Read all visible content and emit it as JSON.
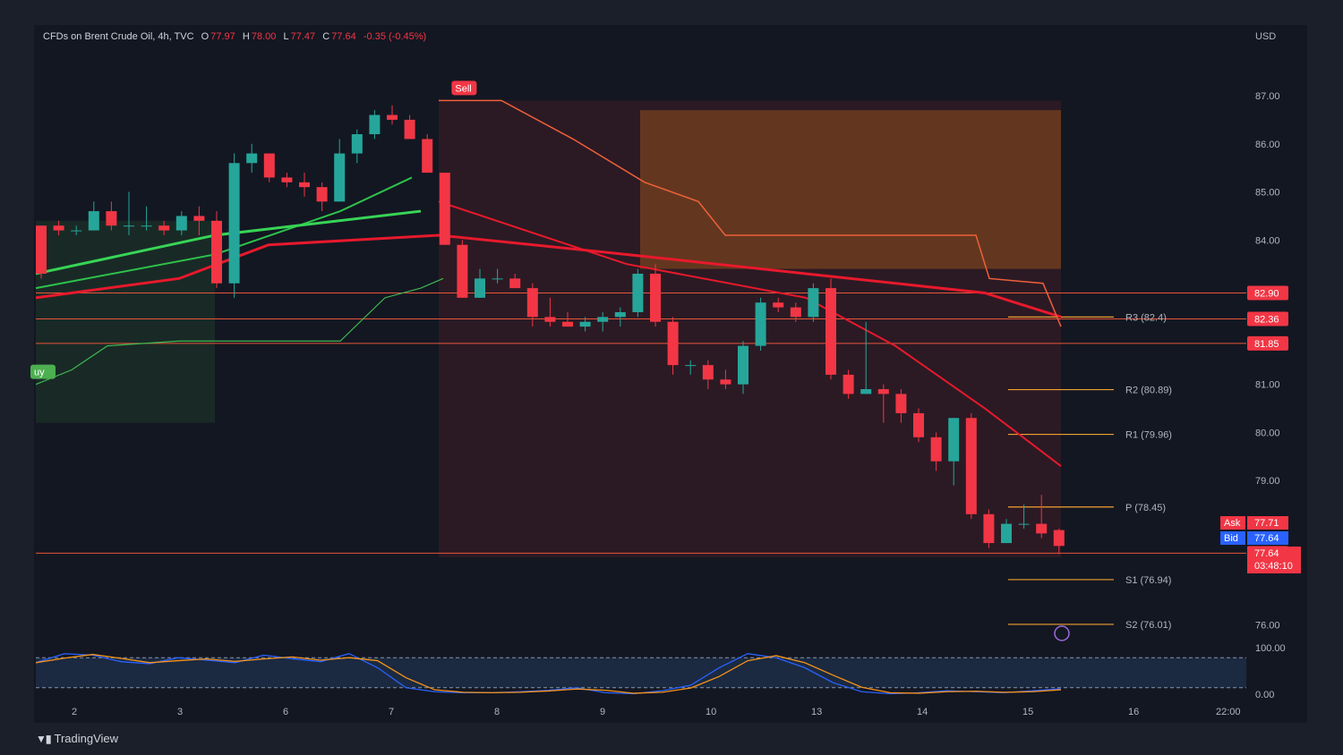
{
  "legend": {
    "title": "CFDs on Brent Crude Oil, 4h, TVC",
    "o_label": "O",
    "o": "77.97",
    "h_label": "H",
    "h": "78.00",
    "l_label": "L",
    "l": "77.47",
    "c_label": "C",
    "c": "77.64",
    "change": "-0.35 (-0.45%)"
  },
  "currency": "USD",
  "brand": "TradingView",
  "colors": {
    "up": "#26a69a",
    "down": "#f23645",
    "pivot": "#f0a030",
    "hline": "#e8553b",
    "signal_buy": "#4caf50",
    "signal_sell": "#f23645"
  },
  "chart_data": {
    "type": "candlestick",
    "ylim": [
      75.6,
      87.8
    ],
    "y_ticks": [
      "87.00",
      "86.00",
      "85.00",
      "84.00",
      "81.00",
      "80.00",
      "79.00",
      "76.00"
    ],
    "x_ticks": [
      "2",
      "3",
      "6",
      "7",
      "8",
      "9",
      "10",
      "13",
      "14",
      "15",
      "16",
      "22:00"
    ],
    "candles": [
      [
        84.3,
        84.3,
        83.2,
        83.3
      ],
      [
        84.3,
        84.4,
        84.1,
        84.2
      ],
      [
        84.2,
        84.3,
        84.1,
        84.2
      ],
      [
        84.2,
        84.8,
        84.2,
        84.6
      ],
      [
        84.6,
        84.8,
        84.2,
        84.3
      ],
      [
        84.3,
        85.0,
        84.1,
        84.3
      ],
      [
        84.3,
        84.7,
        84.2,
        84.3
      ],
      [
        84.3,
        84.4,
        84.1,
        84.2
      ],
      [
        84.2,
        84.6,
        84.1,
        84.5
      ],
      [
        84.5,
        84.7,
        84.1,
        84.4
      ],
      [
        84.4,
        84.6,
        83.0,
        83.1
      ],
      [
        83.1,
        85.8,
        82.8,
        85.6
      ],
      [
        85.6,
        86.0,
        85.4,
        85.8
      ],
      [
        85.8,
        85.8,
        85.2,
        85.3
      ],
      [
        85.3,
        85.4,
        85.1,
        85.2
      ],
      [
        85.2,
        85.4,
        84.9,
        85.1
      ],
      [
        85.1,
        85.2,
        84.6,
        84.8
      ],
      [
        84.8,
        86.1,
        84.8,
        85.8
      ],
      [
        85.8,
        86.3,
        85.6,
        86.2
      ],
      [
        86.2,
        86.7,
        86.1,
        86.6
      ],
      [
        86.6,
        86.8,
        86.4,
        86.5
      ],
      [
        86.5,
        86.6,
        86.1,
        86.1
      ],
      [
        86.1,
        86.2,
        85.4,
        85.4
      ],
      [
        85.4,
        85.4,
        83.9,
        83.9
      ],
      [
        83.9,
        84.0,
        82.8,
        82.8
      ],
      [
        82.8,
        83.4,
        82.8,
        83.2
      ],
      [
        83.2,
        83.4,
        83.1,
        83.2
      ],
      [
        83.2,
        83.3,
        83.0,
        83.0
      ],
      [
        83.0,
        83.1,
        82.2,
        82.4
      ],
      [
        82.4,
        82.8,
        82.2,
        82.3
      ],
      [
        82.3,
        82.5,
        82.2,
        82.2
      ],
      [
        82.2,
        82.4,
        82.1,
        82.3
      ],
      [
        82.3,
        82.5,
        82.1,
        82.4
      ],
      [
        82.4,
        82.6,
        82.2,
        82.5
      ],
      [
        82.5,
        83.4,
        82.4,
        83.3
      ],
      [
        83.3,
        83.5,
        82.2,
        82.3
      ],
      [
        82.3,
        82.4,
        81.2,
        81.4
      ],
      [
        81.4,
        81.5,
        81.2,
        81.4
      ],
      [
        81.4,
        81.5,
        80.9,
        81.1
      ],
      [
        81.1,
        81.3,
        80.9,
        81.0
      ],
      [
        81.0,
        81.9,
        80.8,
        81.8
      ],
      [
        81.8,
        82.8,
        81.7,
        82.7
      ],
      [
        82.7,
        82.8,
        82.5,
        82.6
      ],
      [
        82.6,
        82.7,
        82.3,
        82.4
      ],
      [
        82.4,
        83.1,
        82.3,
        83.0
      ],
      [
        83.0,
        83.2,
        81.1,
        81.2
      ],
      [
        81.2,
        81.3,
        80.7,
        80.8
      ],
      [
        80.8,
        82.3,
        80.8,
        80.9
      ],
      [
        80.9,
        81.0,
        80.2,
        80.8
      ],
      [
        80.8,
        80.9,
        80.2,
        80.4
      ],
      [
        80.4,
        80.5,
        79.8,
        79.9
      ],
      [
        79.9,
        80.0,
        79.2,
        79.4
      ],
      [
        79.4,
        80.3,
        78.9,
        80.3
      ],
      [
        80.3,
        80.4,
        78.2,
        78.3
      ],
      [
        78.3,
        78.4,
        77.6,
        77.7
      ],
      [
        77.7,
        78.2,
        77.7,
        78.1
      ],
      [
        78.1,
        78.5,
        78.0,
        78.1
      ],
      [
        78.1,
        78.7,
        77.8,
        77.9
      ],
      [
        77.97,
        78.0,
        77.47,
        77.64
      ]
    ],
    "price_lines": [
      {
        "value": 82.9,
        "label": "82.90"
      },
      {
        "value": 82.36,
        "label": "82.36"
      },
      {
        "value": 81.85,
        "label": "81.85"
      },
      {
        "value": 77.49,
        "label": "77.49"
      }
    ],
    "pivots": [
      {
        "name": "R3",
        "value": 82.4,
        "label": "R3 (82.4)"
      },
      {
        "name": "R2",
        "value": 80.89,
        "label": "R2 (80.89)"
      },
      {
        "name": "R1",
        "value": 79.96,
        "label": "R1 (79.96)"
      },
      {
        "name": "P",
        "value": 78.45,
        "label": "P (78.45)"
      },
      {
        "name": "S1",
        "value": 76.94,
        "label": "S1 (76.94)"
      },
      {
        "name": "S2",
        "value": 76.01,
        "label": "S2 (76.01)"
      }
    ],
    "ask": {
      "label": "Ask",
      "value": "77.71"
    },
    "bid": {
      "label": "Bid",
      "value": "77.64"
    },
    "last": {
      "value": "77.64",
      "countdown": "03:48:10"
    },
    "signals": [
      {
        "label": "Sell",
        "index": 24,
        "price": 86.9
      },
      {
        "label": "uy",
        "index": 0,
        "price": 81.0
      }
    ],
    "oscillator": {
      "ylim": [
        0,
        100
      ],
      "ticks": [
        "100.00",
        "0.00"
      ],
      "bands": [
        80,
        20
      ]
    }
  }
}
